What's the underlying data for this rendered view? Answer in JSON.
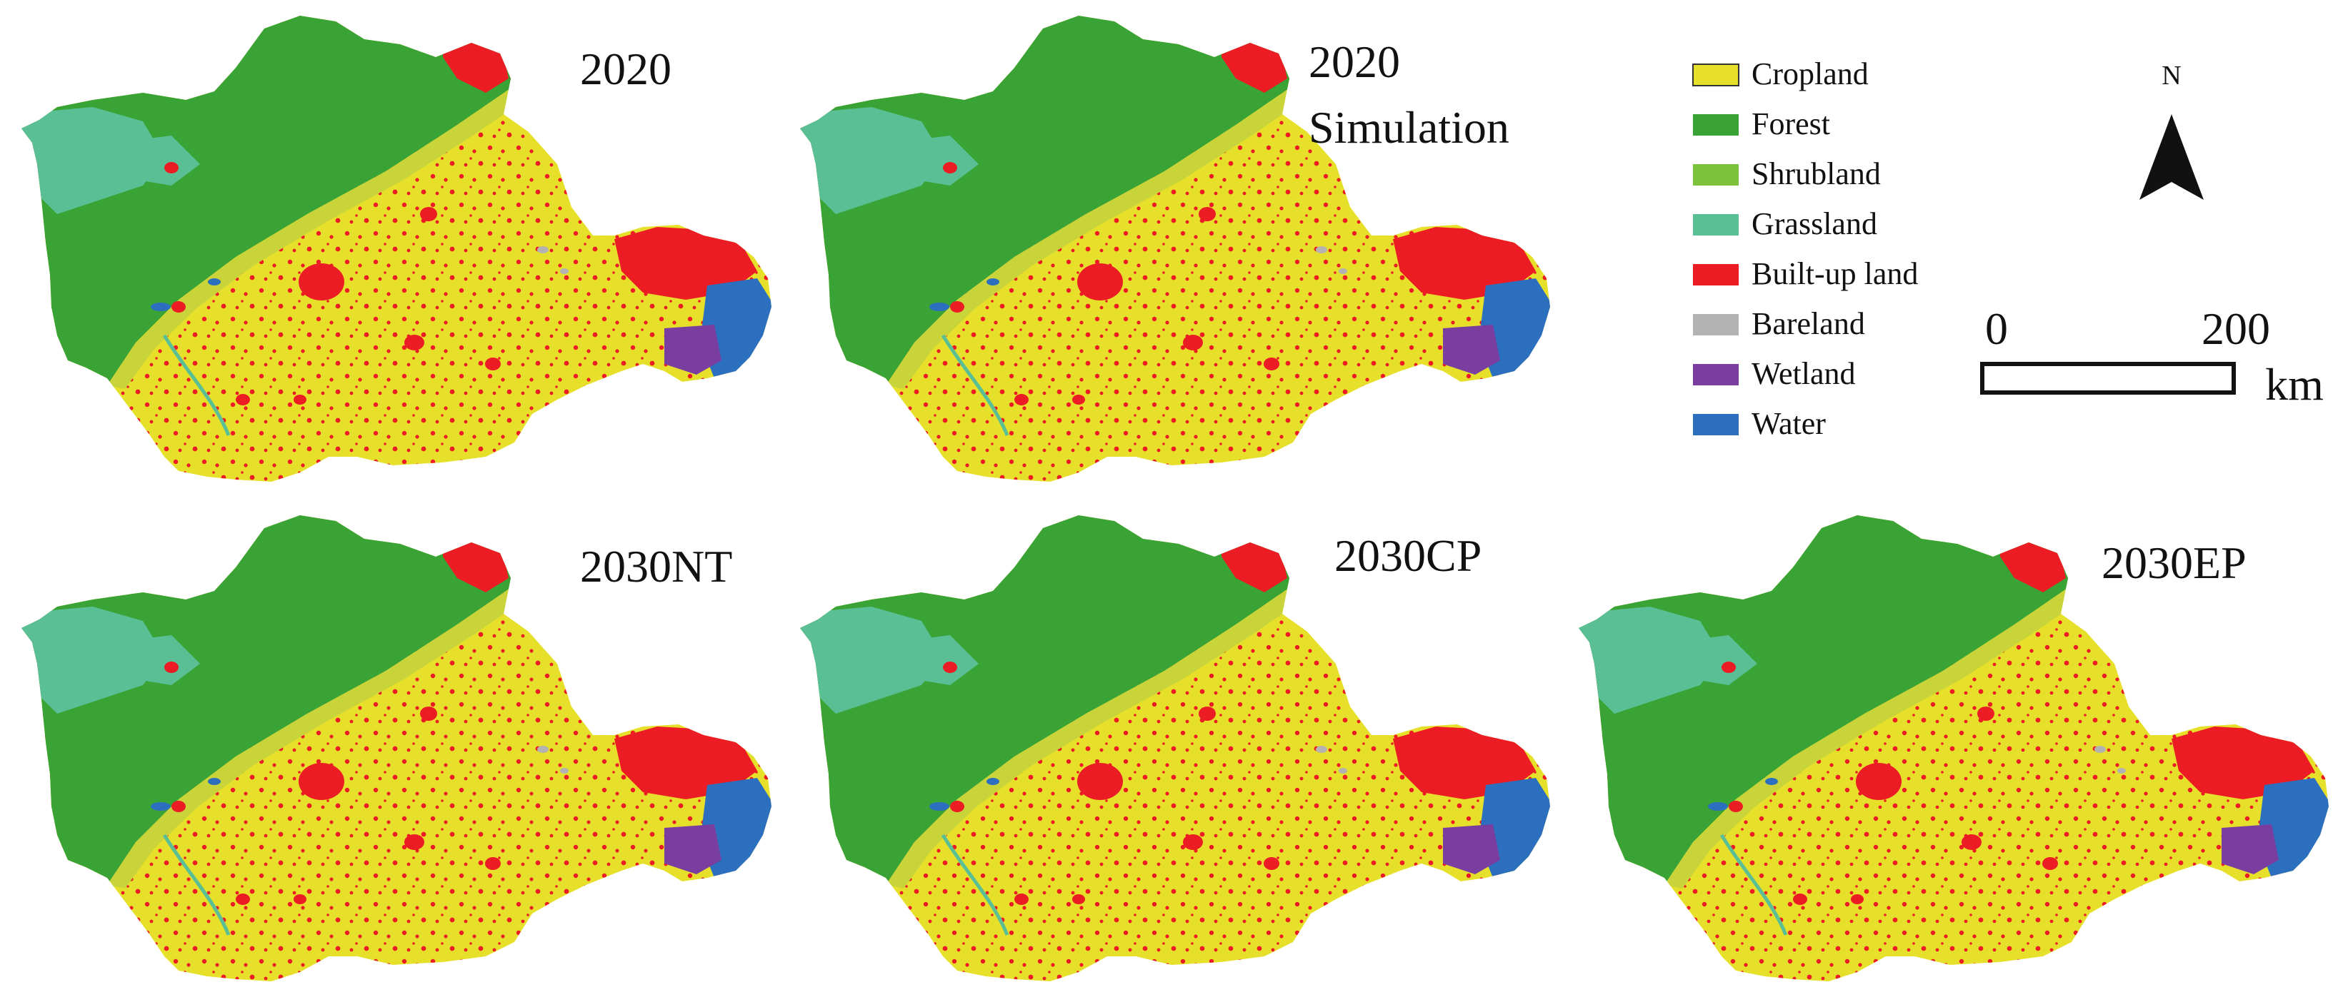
{
  "figure": {
    "panels": [
      {
        "id": "p2020",
        "title": [
          "2020"
        ]
      },
      {
        "id": "p2020sim",
        "title": [
          "2020",
          "Simulation"
        ]
      },
      {
        "id": "p2030nt",
        "title": [
          "2030NT"
        ]
      },
      {
        "id": "p2030cp",
        "title": [
          "2030CP"
        ]
      },
      {
        "id": "p2030ep",
        "title": [
          "2030EP"
        ]
      }
    ],
    "legend": [
      {
        "label": "Cropland",
        "color": "#e6e02a"
      },
      {
        "label": "Forest",
        "color": "#3aa336"
      },
      {
        "label": "Shrubland",
        "color": "#7cc13a"
      },
      {
        "label": "Grassland",
        "color": "#5bbf95"
      },
      {
        "label": "Built-up land",
        "color": "#ec1c24"
      },
      {
        "label": "Bareland",
        "color": "#b3b3b3"
      },
      {
        "label": "Wetland",
        "color": "#7a3ea0"
      },
      {
        "label": "Water",
        "color": "#2d6fbf"
      }
    ],
    "north_arrow": {
      "label": "N"
    },
    "scale_bar": {
      "start": "0",
      "end": "200",
      "unit": "km"
    }
  }
}
